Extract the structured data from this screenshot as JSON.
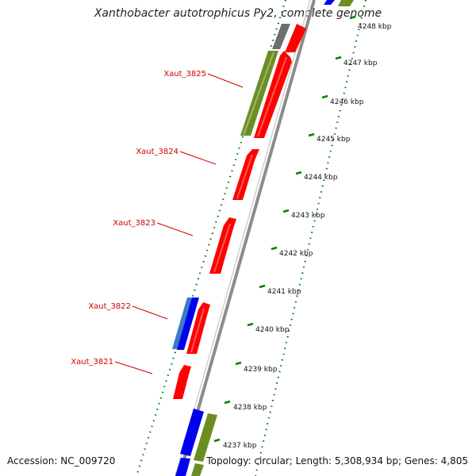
{
  "title": "Xanthobacter autotrophicus Py2, complete genome",
  "accession": "Accession: NC_009720",
  "summary": "Topology: circular; Length: 5,308,934 bp; Genes: 4,805",
  "colors": {
    "forward_gene": "#ff0000",
    "reverse_gene_blue": "#0000ee",
    "reverse_gene_green": "#6b8e23",
    "pseudo_gene": "#707070",
    "backbone": "#909090",
    "ruler_ticks": "#008000",
    "gene_label": "#d00000"
  },
  "ticks": [
    {
      "label": "4248 kbp",
      "kbp": 4248
    },
    {
      "label": "4247 kbp",
      "kbp": 4247
    },
    {
      "label": "4246 kbp",
      "kbp": 4246
    },
    {
      "label": "4245 kbp",
      "kbp": 4245
    },
    {
      "label": "4244 kbp",
      "kbp": 4244
    },
    {
      "label": "4243 kbp",
      "kbp": 4243
    },
    {
      "label": "4242 kbp",
      "kbp": 4242
    },
    {
      "label": "4241 kbp",
      "kbp": 4241
    },
    {
      "label": "4240 kbp",
      "kbp": 4240
    },
    {
      "label": "4239 kbp",
      "kbp": 4239
    },
    {
      "label": "4238 kbp",
      "kbp": 4238
    },
    {
      "label": "4237 kbp",
      "kbp": 4237
    }
  ],
  "genes": [
    {
      "label": "Xaut_3825",
      "color": "forward_gene"
    },
    {
      "label": "Xaut_3824",
      "color": "forward_gene"
    },
    {
      "label": "Xaut_3823",
      "color": "forward_gene"
    },
    {
      "label": "Xaut_3822",
      "color": "forward_gene"
    },
    {
      "label": "Xaut_3821",
      "color": "forward_gene"
    }
  ]
}
